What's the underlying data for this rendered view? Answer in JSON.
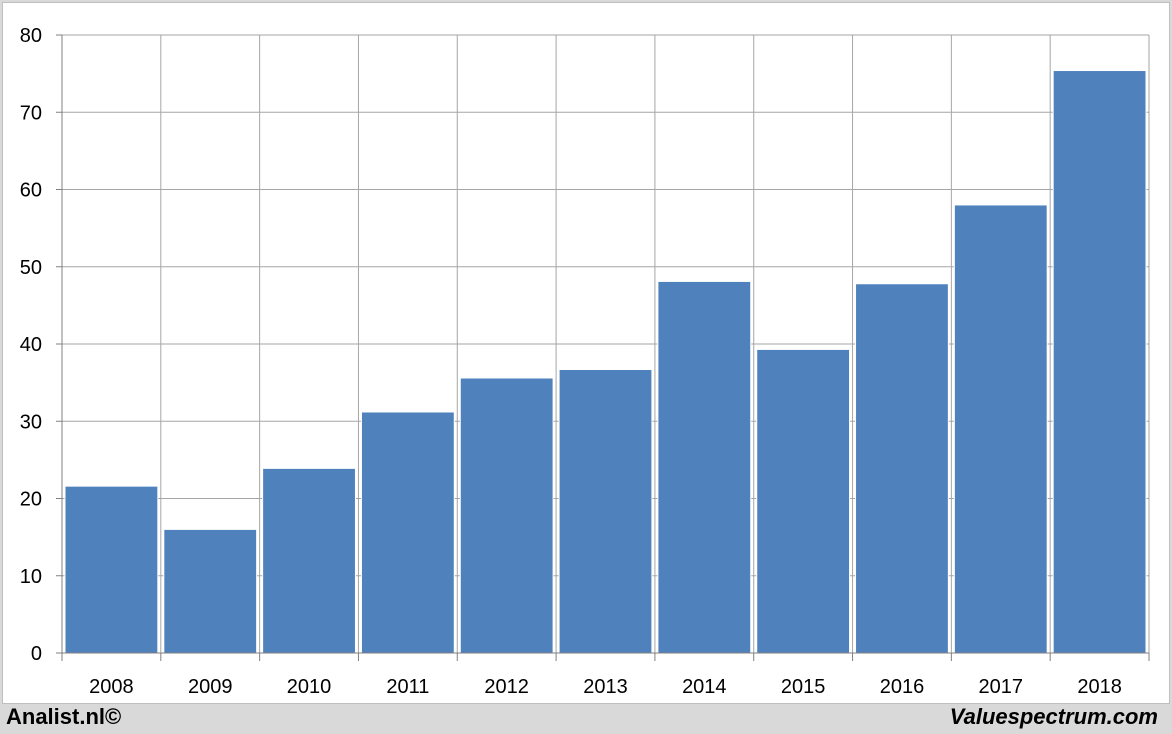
{
  "chart_data": {
    "type": "bar",
    "categories": [
      "2008",
      "2009",
      "2010",
      "2011",
      "2012",
      "2013",
      "2014",
      "2015",
      "2016",
      "2017",
      "2018"
    ],
    "values": [
      21.6,
      16.0,
      23.9,
      31.2,
      35.6,
      36.7,
      48.1,
      39.3,
      47.8,
      58.0,
      75.4
    ],
    "title": "",
    "xlabel": "",
    "ylabel": "",
    "ylim": [
      0,
      80
    ],
    "yticks": [
      0,
      10,
      20,
      30,
      40,
      50,
      60,
      70,
      80
    ],
    "grid": true,
    "bar_color": "#4f81bd",
    "grid_color": "#a6a6a6"
  },
  "footer": {
    "left": "Analist.nl©",
    "right": "Valuespectrum.com"
  }
}
